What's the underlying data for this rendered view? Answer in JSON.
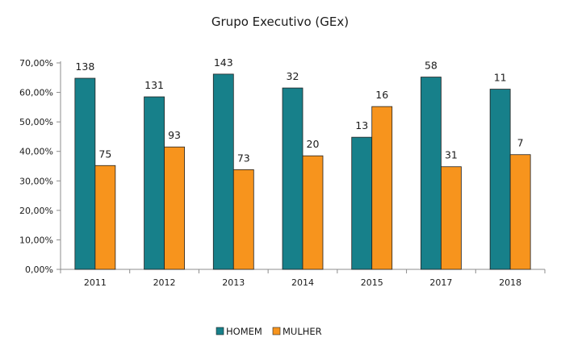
{
  "chart_data": {
    "type": "bar",
    "title": "Grupo Executivo (GEx)",
    "xlabel": "",
    "ylabel": "",
    "categories": [
      "2011",
      "2012",
      "2013",
      "2014",
      "2015",
      "2017",
      "2018"
    ],
    "series": [
      {
        "name": "HOMEM",
        "color": "#17808a",
        "values": [
          64.8,
          58.5,
          66.2,
          61.5,
          44.8,
          65.2,
          61.1
        ],
        "data_labels": [
          "138",
          "131",
          "143",
          "32",
          "13",
          "58",
          "11"
        ]
      },
      {
        "name": "MULHER",
        "color": "#f7941d",
        "values": [
          35.2,
          41.5,
          33.8,
          38.5,
          55.2,
          34.8,
          38.9
        ],
        "data_labels": [
          "75",
          "93",
          "73",
          "20",
          "16",
          "31",
          "7"
        ]
      }
    ],
    "yticks": [
      "0,00%",
      "10,00%",
      "20,00%",
      "30,00%",
      "40,00%",
      "50,00%",
      "60,00%",
      "70,00%"
    ],
    "ylim": [
      0,
      70
    ],
    "grid": false,
    "legend_position": "bottom"
  }
}
